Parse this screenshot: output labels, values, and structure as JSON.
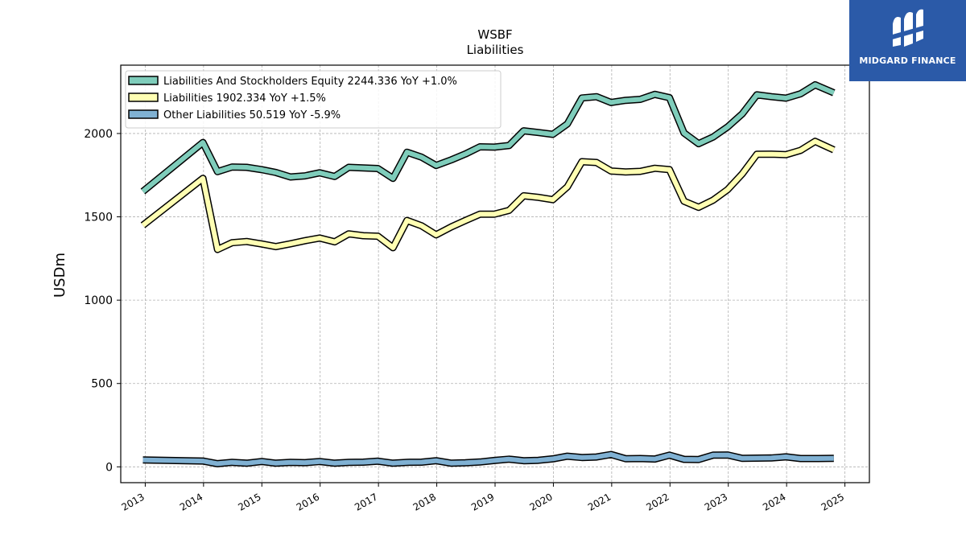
{
  "chart_data": {
    "type": "line",
    "title": "WSBF",
    "subtitle": "Liabilities",
    "ylabel": "USDm",
    "xlabel": "",
    "ylim": [
      -95,
      2410
    ],
    "xlim": [
      2012.58,
      2025.42
    ],
    "yticks": [
      0,
      500,
      1000,
      1500,
      2000
    ],
    "xticks": [
      "2013",
      "2014",
      "2015",
      "2016",
      "2017",
      "2018",
      "2019",
      "2020",
      "2021",
      "2022",
      "2023",
      "2024",
      "2025"
    ],
    "grid": true,
    "legend_position": "top-left",
    "series": [
      {
        "name": "Liabilities And Stockholders Equity",
        "legend": "Liabilities And Stockholders Equity  2244.336 YoY +1.0%",
        "color": "#7fcdbb",
        "points": [
          [
            2012.96,
            1652
          ],
          [
            2013.99,
            1946
          ],
          [
            2014.24,
            1771
          ],
          [
            2014.49,
            1799
          ],
          [
            2014.74,
            1797
          ],
          [
            2015.0,
            1783
          ],
          [
            2015.24,
            1766
          ],
          [
            2015.49,
            1739
          ],
          [
            2015.74,
            1746
          ],
          [
            2015.99,
            1764
          ],
          [
            2016.25,
            1742
          ],
          [
            2016.49,
            1797
          ],
          [
            2016.74,
            1793
          ],
          [
            2016.99,
            1790
          ],
          [
            2017.25,
            1731
          ],
          [
            2017.49,
            1888
          ],
          [
            2017.74,
            1858
          ],
          [
            2017.99,
            1808
          ],
          [
            2018.25,
            1842
          ],
          [
            2018.49,
            1877
          ],
          [
            2018.74,
            1920
          ],
          [
            2018.99,
            1918
          ],
          [
            2019.24,
            1928
          ],
          [
            2019.49,
            2016
          ],
          [
            2019.74,
            2006
          ],
          [
            2019.99,
            1995
          ],
          [
            2020.24,
            2057
          ],
          [
            2020.49,
            2213
          ],
          [
            2020.74,
            2221
          ],
          [
            2020.99,
            2186
          ],
          [
            2021.24,
            2199
          ],
          [
            2021.49,
            2205
          ],
          [
            2021.74,
            2235
          ],
          [
            2021.99,
            2215
          ],
          [
            2022.24,
            2003
          ],
          [
            2022.49,
            1939
          ],
          [
            2022.74,
            1979
          ],
          [
            2022.99,
            2040
          ],
          [
            2023.24,
            2118
          ],
          [
            2023.49,
            2232
          ],
          [
            2023.74,
            2221
          ],
          [
            2023.99,
            2212
          ],
          [
            2024.24,
            2238
          ],
          [
            2024.49,
            2292
          ],
          [
            2024.81,
            2244
          ]
        ]
      },
      {
        "name": "Liabilities",
        "legend": "Liabilities  1902.334 YoY +1.5%",
        "color": "#ffffb3",
        "points": [
          [
            2012.96,
            1449
          ],
          [
            2013.99,
            1731
          ],
          [
            2014.24,
            1304
          ],
          [
            2014.49,
            1345
          ],
          [
            2014.74,
            1352
          ],
          [
            2015.0,
            1337
          ],
          [
            2015.24,
            1321
          ],
          [
            2015.49,
            1338
          ],
          [
            2015.74,
            1357
          ],
          [
            2015.99,
            1373
          ],
          [
            2016.25,
            1350
          ],
          [
            2016.49,
            1398
          ],
          [
            2016.74,
            1387
          ],
          [
            2016.99,
            1384
          ],
          [
            2017.25,
            1315
          ],
          [
            2017.49,
            1478
          ],
          [
            2017.74,
            1446
          ],
          [
            2017.99,
            1392
          ],
          [
            2018.25,
            1440
          ],
          [
            2018.49,
            1478
          ],
          [
            2018.74,
            1516
          ],
          [
            2018.99,
            1516
          ],
          [
            2019.24,
            1539
          ],
          [
            2019.49,
            1626
          ],
          [
            2019.74,
            1617
          ],
          [
            2019.99,
            1603
          ],
          [
            2020.24,
            1680
          ],
          [
            2020.49,
            1831
          ],
          [
            2020.74,
            1826
          ],
          [
            2020.99,
            1775
          ],
          [
            2021.24,
            1769
          ],
          [
            2021.49,
            1773
          ],
          [
            2021.74,
            1791
          ],
          [
            2021.99,
            1783
          ],
          [
            2022.24,
            1594
          ],
          [
            2022.49,
            1557
          ],
          [
            2022.74,
            1600
          ],
          [
            2022.99,
            1664
          ],
          [
            2023.24,
            1758
          ],
          [
            2023.49,
            1875
          ],
          [
            2023.74,
            1876
          ],
          [
            2023.99,
            1873
          ],
          [
            2024.24,
            1899
          ],
          [
            2024.49,
            1953
          ],
          [
            2024.81,
            1902
          ]
        ]
      },
      {
        "name": "Other Liabilities",
        "legend": "Other Liabilities  50.519 YoY -5.9%",
        "color": "#80b1d3",
        "points": [
          [
            2012.96,
            41
          ],
          [
            2013.99,
            35
          ],
          [
            2014.24,
            19
          ],
          [
            2014.49,
            27
          ],
          [
            2014.74,
            22
          ],
          [
            2015.0,
            32
          ],
          [
            2015.24,
            22
          ],
          [
            2015.49,
            27
          ],
          [
            2015.74,
            25
          ],
          [
            2015.99,
            32
          ],
          [
            2016.25,
            22
          ],
          [
            2016.49,
            27
          ],
          [
            2016.74,
            28
          ],
          [
            2016.99,
            34
          ],
          [
            2017.25,
            22
          ],
          [
            2017.49,
            27
          ],
          [
            2017.74,
            28
          ],
          [
            2017.99,
            37
          ],
          [
            2018.25,
            22
          ],
          [
            2018.49,
            24
          ],
          [
            2018.74,
            29
          ],
          [
            2018.99,
            38
          ],
          [
            2019.24,
            46
          ],
          [
            2019.49,
            37
          ],
          [
            2019.74,
            39
          ],
          [
            2019.99,
            48
          ],
          [
            2020.24,
            64
          ],
          [
            2020.49,
            56
          ],
          [
            2020.74,
            59
          ],
          [
            2020.99,
            74
          ],
          [
            2021.24,
            49
          ],
          [
            2021.49,
            50
          ],
          [
            2021.74,
            47
          ],
          [
            2021.99,
            70
          ],
          [
            2022.24,
            45
          ],
          [
            2022.49,
            44
          ],
          [
            2022.74,
            70
          ],
          [
            2022.99,
            71
          ],
          [
            2023.24,
            51
          ],
          [
            2023.49,
            52
          ],
          [
            2023.74,
            53
          ],
          [
            2023.99,
            60
          ],
          [
            2024.24,
            50
          ],
          [
            2024.49,
            50
          ],
          [
            2024.81,
            51
          ]
        ]
      }
    ]
  },
  "logo": {
    "text": "MIDGARD FINANCE",
    "background": "#2b5aa8"
  }
}
